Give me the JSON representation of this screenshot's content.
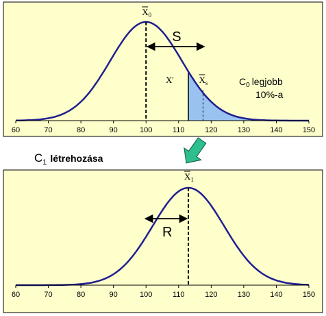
{
  "chart_data": [
    {
      "type": "line",
      "panel": "top",
      "xlim": [
        60,
        150
      ],
      "xticks": [
        60,
        70,
        80,
        90,
        100,
        110,
        120,
        130,
        140,
        150
      ],
      "curve": {
        "mean": 100,
        "sd": 11
      },
      "shaded_from": 113,
      "mean_label": {
        "base": "X",
        "sub": "0"
      },
      "selected_mean": {
        "value": 117.5,
        "base": "X",
        "sub": "s"
      },
      "cutoff_label": "X'",
      "span_label": "S",
      "note": {
        "line1_base": "C",
        "line1_sub": "0",
        "line1_rest": "legjobb",
        "line2": "10%-a"
      }
    },
    {
      "type": "line",
      "panel": "bottom",
      "xlim": [
        60,
        150
      ],
      "xticks": [
        60,
        70,
        80,
        90,
        100,
        110,
        120,
        130,
        140,
        150
      ],
      "curve": {
        "mean": 113,
        "sd": 11
      },
      "mean_label": {
        "base": "X",
        "sub": "1"
      },
      "span_label": "R"
    }
  ],
  "heading": {
    "base": "C",
    "sub": "1",
    "rest": "létrehozása"
  },
  "colors": {
    "panel": "#ffffcc",
    "curve": "#1f1f8f",
    "shade": "#99c2f0",
    "arrow": "#2fbf8f"
  }
}
